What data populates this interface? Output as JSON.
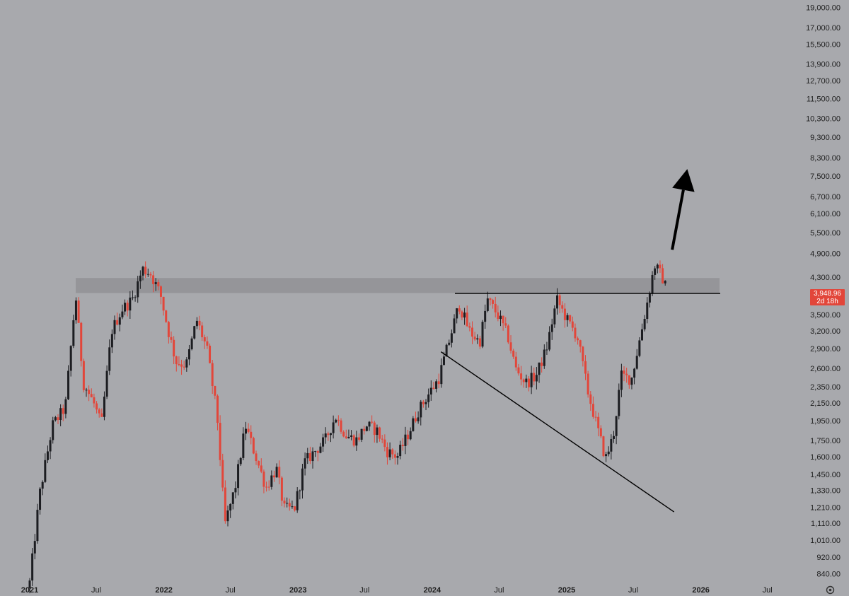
{
  "chart_data": {
    "type": "candlestick",
    "title": "",
    "scale": "log",
    "grid": false,
    "ylim": [
      800,
      20000
    ],
    "y_ticks": [
      "19,000.00",
      "17,000.00",
      "15,500.00",
      "13,900.00",
      "12,700.00",
      "11,500.00",
      "10,300.00",
      "9,300.00",
      "8,300.00",
      "7,500.00",
      "6,700.00",
      "6,100.00",
      "5,500.00",
      "4,900.00",
      "4,300.00",
      "3,500.00",
      "3,200.00",
      "2,900.00",
      "2,600.00",
      "2,350.00",
      "2,150.00",
      "1,950.00",
      "1,750.00",
      "1,600.00",
      "1,450.00",
      "1,330.00",
      "1,210.00",
      "1,110.00",
      "1,010.00",
      "920.00",
      "840.00"
    ],
    "x_ticks": [
      {
        "label": "2021",
        "date": "2021-01-01",
        "year": true
      },
      {
        "label": "Jul",
        "date": "2021-07-01",
        "year": false
      },
      {
        "label": "2022",
        "date": "2022-01-01",
        "year": true
      },
      {
        "label": "Jul",
        "date": "2022-07-01",
        "year": false
      },
      {
        "label": "2023",
        "date": "2023-01-01",
        "year": true
      },
      {
        "label": "Jul",
        "date": "2023-07-01",
        "year": false
      },
      {
        "label": "2024",
        "date": "2024-01-01",
        "year": true
      },
      {
        "label": "Jul",
        "date": "2024-07-01",
        "year": false
      },
      {
        "label": "2025",
        "date": "2025-01-01",
        "year": true
      },
      {
        "label": "Jul",
        "date": "2025-07-01",
        "year": false
      },
      {
        "label": "2026",
        "date": "2026-01-01",
        "year": true
      },
      {
        "label": "Jul",
        "date": "2026-07-01",
        "year": false
      }
    ],
    "key_points": [
      {
        "date": "2021-01-01",
        "close": 800
      },
      {
        "date": "2021-01-28",
        "close": 1300
      },
      {
        "date": "2021-03-04",
        "close": 1900
      },
      {
        "date": "2021-04-08",
        "close": 2100
      },
      {
        "date": "2021-05-06",
        "close": 3900
      },
      {
        "date": "2021-05-27",
        "close": 2400
      },
      {
        "date": "2021-06-24",
        "close": 2150
      },
      {
        "date": "2021-07-15",
        "close": 1900
      },
      {
        "date": "2021-08-12",
        "close": 3200
      },
      {
        "date": "2021-09-09",
        "close": 3600
      },
      {
        "date": "2021-10-07",
        "close": 3800
      },
      {
        "date": "2021-11-04",
        "close": 4500
      },
      {
        "date": "2021-11-25",
        "close": 4400
      },
      {
        "date": "2021-12-23",
        "close": 3900
      },
      {
        "date": "2022-01-13",
        "close": 3200
      },
      {
        "date": "2022-02-03",
        "close": 2700
      },
      {
        "date": "2022-03-03",
        "close": 2650
      },
      {
        "date": "2022-03-31",
        "close": 3400
      },
      {
        "date": "2022-04-28",
        "close": 2900
      },
      {
        "date": "2022-05-26",
        "close": 2000
      },
      {
        "date": "2022-06-16",
        "close": 1100
      },
      {
        "date": "2022-07-14",
        "close": 1350
      },
      {
        "date": "2022-08-11",
        "close": 1900
      },
      {
        "date": "2022-09-08",
        "close": 1600
      },
      {
        "date": "2022-10-06",
        "close": 1350
      },
      {
        "date": "2022-11-03",
        "close": 1500
      },
      {
        "date": "2022-11-24",
        "close": 1200
      },
      {
        "date": "2022-12-22",
        "close": 1200
      },
      {
        "date": "2023-01-19",
        "close": 1550
      },
      {
        "date": "2023-02-16",
        "close": 1650
      },
      {
        "date": "2023-03-16",
        "close": 1750
      },
      {
        "date": "2023-04-13",
        "close": 2000
      },
      {
        "date": "2023-05-11",
        "close": 1800
      },
      {
        "date": "2023-06-08",
        "close": 1750
      },
      {
        "date": "2023-07-06",
        "close": 1900
      },
      {
        "date": "2023-08-03",
        "close": 1850
      },
      {
        "date": "2023-08-31",
        "close": 1650
      },
      {
        "date": "2023-09-28",
        "close": 1600
      },
      {
        "date": "2023-10-26",
        "close": 1800
      },
      {
        "date": "2023-11-23",
        "close": 2050
      },
      {
        "date": "2023-12-21",
        "close": 2250
      },
      {
        "date": "2024-01-18",
        "close": 2450
      },
      {
        "date": "2024-02-15",
        "close": 3000
      },
      {
        "date": "2024-03-14",
        "close": 3700
      },
      {
        "date": "2024-04-11",
        "close": 3200
      },
      {
        "date": "2024-05-09",
        "close": 3000
      },
      {
        "date": "2024-05-30",
        "close": 3800
      },
      {
        "date": "2024-06-27",
        "close": 3500
      },
      {
        "date": "2024-07-25",
        "close": 3100
      },
      {
        "date": "2024-08-15",
        "close": 2600
      },
      {
        "date": "2024-09-12",
        "close": 2400
      },
      {
        "date": "2024-10-10",
        "close": 2500
      },
      {
        "date": "2024-11-07",
        "close": 2900
      },
      {
        "date": "2024-12-05",
        "close": 3800
      },
      {
        "date": "2025-01-02",
        "close": 3400
      },
      {
        "date": "2025-01-30",
        "close": 3100
      },
      {
        "date": "2025-02-27",
        "close": 2300
      },
      {
        "date": "2025-03-27",
        "close": 1850
      },
      {
        "date": "2025-04-17",
        "close": 1580
      },
      {
        "date": "2025-05-08",
        "close": 1800
      },
      {
        "date": "2025-05-29",
        "close": 2500
      },
      {
        "date": "2025-06-26",
        "close": 2450
      },
      {
        "date": "2025-07-17",
        "close": 3000
      },
      {
        "date": "2025-08-07",
        "close": 3700
      },
      {
        "date": "2025-08-28",
        "close": 4600
      },
      {
        "date": "2025-09-18",
        "close": 4300
      },
      {
        "date": "2025-10-02",
        "close": 3949
      }
    ],
    "resistance_zone": [
      3940,
      4280
    ],
    "horizontal_line": 3930,
    "trendline": [
      {
        "date": "2024-01-25",
        "price": 2850
      },
      {
        "date": "2025-10-20",
        "price": 1180
      }
    ],
    "arrow": [
      {
        "date": "2025-10-15",
        "price": 5000
      },
      {
        "date": "2025-11-25",
        "price": 7800
      }
    ],
    "last_price": "3,948.96",
    "countdown": "2d 18h",
    "colors": {
      "up": "#1c1d21",
      "down": "#e2463a",
      "background": "#a8a9ad",
      "zone": "#8f8f93",
      "price_tag": "#e2463a"
    }
  }
}
